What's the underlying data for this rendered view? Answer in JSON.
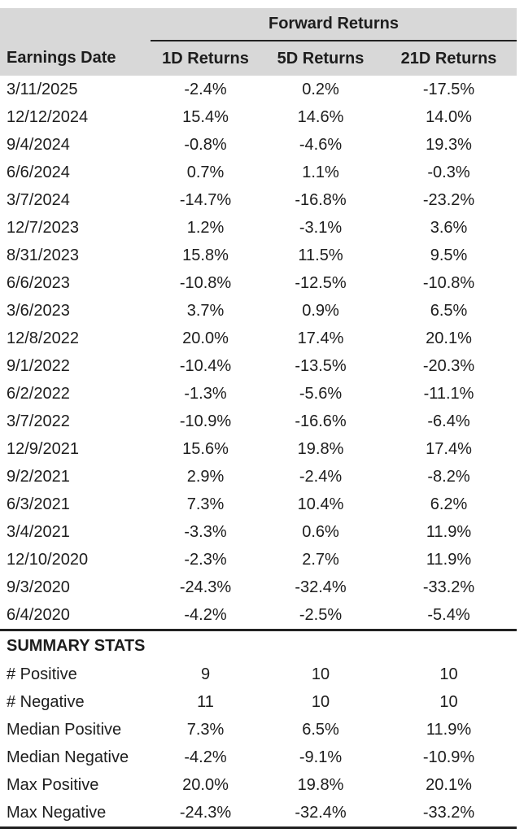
{
  "colors": {
    "header_band_bg": "#d8d8d8",
    "rule_line": "#222222",
    "text": "#1d1d1d",
    "background": "#ffffff"
  },
  "chart_data": {
    "type": "table",
    "title": "Forward Returns",
    "group_header": "Forward Returns",
    "columns": [
      "Earnings Date",
      "1D Returns",
      "5D Returns",
      "21D Returns"
    ],
    "rows": [
      [
        "3/11/2025",
        "-2.4%",
        "0.2%",
        "-17.5%"
      ],
      [
        "12/12/2024",
        "15.4%",
        "14.6%",
        "14.0%"
      ],
      [
        "9/4/2024",
        "-0.8%",
        "-4.6%",
        "19.3%"
      ],
      [
        "6/6/2024",
        "0.7%",
        "1.1%",
        "-0.3%"
      ],
      [
        "3/7/2024",
        "-14.7%",
        "-16.8%",
        "-23.2%"
      ],
      [
        "12/7/2023",
        "1.2%",
        "-3.1%",
        "3.6%"
      ],
      [
        "8/31/2023",
        "15.8%",
        "11.5%",
        "9.5%"
      ],
      [
        "6/6/2023",
        "-10.8%",
        "-12.5%",
        "-10.8%"
      ],
      [
        "3/6/2023",
        "3.7%",
        "0.9%",
        "6.5%"
      ],
      [
        "12/8/2022",
        "20.0%",
        "17.4%",
        "20.1%"
      ],
      [
        "9/1/2022",
        "-10.4%",
        "-13.5%",
        "-20.3%"
      ],
      [
        "6/2/2022",
        "-1.3%",
        "-5.6%",
        "-11.1%"
      ],
      [
        "3/7/2022",
        "-10.9%",
        "-16.6%",
        "-6.4%"
      ],
      [
        "12/9/2021",
        "15.6%",
        "19.8%",
        "17.4%"
      ],
      [
        "9/2/2021",
        "2.9%",
        "-2.4%",
        "-8.2%"
      ],
      [
        "6/3/2021",
        "7.3%",
        "10.4%",
        "6.2%"
      ],
      [
        "3/4/2021",
        "-3.3%",
        "0.6%",
        "11.9%"
      ],
      [
        "12/10/2020",
        "-2.3%",
        "2.7%",
        "11.9%"
      ],
      [
        "9/3/2020",
        "-24.3%",
        "-32.4%",
        "-33.2%"
      ],
      [
        "6/4/2020",
        "-4.2%",
        "-2.5%",
        "-5.4%"
      ]
    ],
    "summary": {
      "title": "SUMMARY STATS",
      "rows": [
        [
          "# Positive",
          "9",
          "10",
          "10"
        ],
        [
          "# Negative",
          "11",
          "10",
          "10"
        ],
        [
          "Median Positive",
          "7.3%",
          "6.5%",
          "11.9%"
        ],
        [
          "Median Negative",
          "-4.2%",
          "-9.1%",
          "-10.9%"
        ],
        [
          "Max Positive",
          "20.0%",
          "19.8%",
          "20.1%"
        ],
        [
          "Max Negative",
          "-24.3%",
          "-32.4%",
          "-33.2%"
        ]
      ]
    }
  }
}
